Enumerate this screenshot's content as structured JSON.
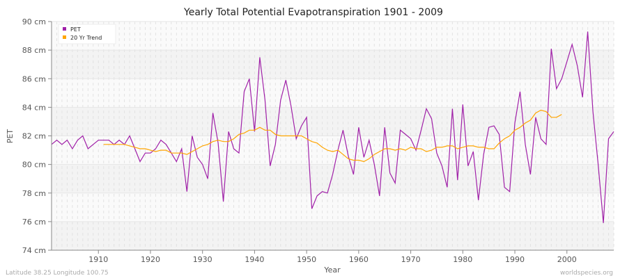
{
  "chart_data": {
    "type": "line",
    "title": "Yearly Total Potential Evapotranspiration 1901 - 2009",
    "xlabel": "Year",
    "ylabel": "PET",
    "xlim": [
      1901,
      2009
    ],
    "ylim": [
      74,
      90
    ],
    "y_unit": "cm",
    "x_ticks": [
      1910,
      1920,
      1930,
      1940,
      1950,
      1960,
      1970,
      1980,
      1990,
      2000
    ],
    "y_ticks": [
      74,
      76,
      78,
      80,
      82,
      84,
      86,
      88,
      90
    ],
    "y_tick_labels": [
      "74 cm",
      "76 cm",
      "78 cm",
      "80 cm",
      "82 cm",
      "84 cm",
      "86 cm",
      "88 cm",
      "90 cm"
    ],
    "grid": true,
    "legend_position": "top-left",
    "series": [
      {
        "name": "PET",
        "color": "#a020a8",
        "x_start": 1901,
        "values": [
          81.4,
          81.7,
          81.4,
          81.7,
          81.1,
          81.7,
          82.0,
          81.1,
          81.4,
          81.7,
          81.7,
          81.7,
          81.4,
          81.7,
          81.4,
          82.0,
          81.1,
          80.2,
          80.8,
          80.8,
          81.1,
          81.7,
          81.4,
          80.8,
          80.2,
          81.1,
          78.1,
          82.0,
          80.5,
          80.0,
          79.0,
          83.6,
          81.5,
          77.4,
          82.3,
          81.1,
          80.8,
          85.1,
          86.0,
          82.3,
          87.5,
          84.5,
          79.9,
          81.4,
          84.5,
          85.9,
          84.1,
          81.8,
          82.7,
          83.3,
          76.9,
          77.8,
          78.1,
          78.0,
          79.3,
          81.0,
          82.4,
          80.6,
          79.3,
          82.6,
          80.5,
          81.7,
          80.0,
          77.8,
          82.6,
          79.4,
          78.7,
          82.4,
          82.1,
          81.8,
          81.0,
          82.4,
          83.9,
          83.2,
          80.8,
          79.9,
          78.4,
          83.9,
          78.9,
          84.2,
          79.9,
          80.9,
          77.5,
          80.7,
          82.6,
          82.7,
          82.1,
          78.4,
          78.1,
          82.9,
          85.1,
          81.4,
          79.3,
          83.3,
          81.8,
          81.4,
          88.1,
          85.3,
          86.0,
          87.2,
          88.4,
          86.9,
          84.7,
          89.3,
          83.7,
          80.0,
          75.9,
          81.8,
          82.3
        ]
      },
      {
        "name": "20 Yr Trend",
        "color": "#ffa500",
        "x_start": 1911,
        "values": [
          81.4,
          81.4,
          81.4,
          81.4,
          81.4,
          81.3,
          81.2,
          81.1,
          81.1,
          81.0,
          80.9,
          81.0,
          81.0,
          80.8,
          80.8,
          80.8,
          80.7,
          80.9,
          81.1,
          81.3,
          81.4,
          81.6,
          81.7,
          81.6,
          81.6,
          81.8,
          82.1,
          82.2,
          82.4,
          82.4,
          82.6,
          82.4,
          82.4,
          82.1,
          82.0,
          82.0,
          82.0,
          82.0,
          82.0,
          81.8,
          81.6,
          81.5,
          81.2,
          81.0,
          80.9,
          81.0,
          80.7,
          80.4,
          80.3,
          80.3,
          80.2,
          80.4,
          80.7,
          80.9,
          81.1,
          81.1,
          81.0,
          81.1,
          81.0,
          81.2,
          81.1,
          81.1,
          80.9,
          81.0,
          81.2,
          81.2,
          81.3,
          81.3,
          81.1,
          81.2,
          81.3,
          81.3,
          81.2,
          81.2,
          81.1,
          81.1,
          81.5,
          81.8,
          82.0,
          82.4,
          82.6,
          82.9,
          83.1,
          83.6,
          83.8,
          83.7,
          83.3,
          83.3,
          83.5
        ]
      }
    ]
  },
  "footer": {
    "location": "Latitude 38.25 Longitude 100.75",
    "source": "worldspecies.org"
  }
}
